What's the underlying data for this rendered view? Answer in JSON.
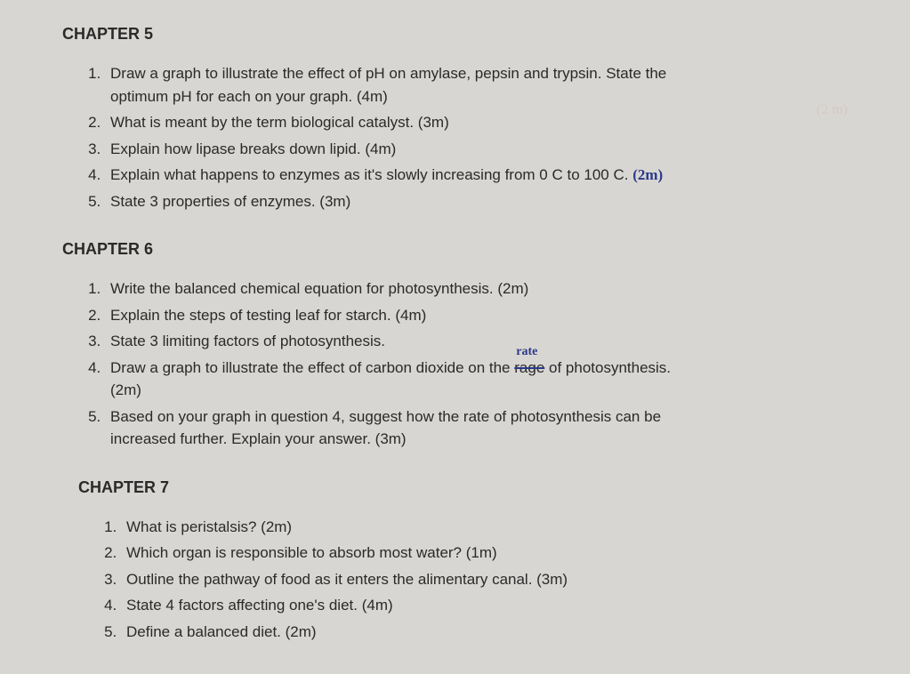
{
  "chapters": [
    {
      "title": "CHAPTER 5",
      "questions": [
        {
          "text_a": "Draw a graph to illustrate the effect of pH on amylase, pepsin and trypsin. State the",
          "text_b": "optimum pH for each on your graph. (4m)"
        },
        {
          "text_a": "What is meant by the term biological catalyst. (3m)"
        },
        {
          "text_a": "Explain how lipase breaks down lipid. (4m)"
        },
        {
          "text_a": "Explain what happens to enzymes as it's slowly increasing from 0 C to 100 C. ",
          "annotation": "(2m)"
        },
        {
          "text_a": "State 3 properties of enzymes. (3m)"
        }
      ]
    },
    {
      "title": "CHAPTER 6",
      "questions": [
        {
          "text_a": "Write the balanced chemical equation for photosynthesis. (2m)"
        },
        {
          "text_a": "Explain the steps of testing leaf for starch. (4m)"
        },
        {
          "text_a": "State 3 limiting factors of photosynthesis."
        },
        {
          "text_a": "Draw a graph to illustrate the effect of carbon dioxide on the ",
          "struck": "rage",
          "correction": "rate",
          "text_b": " of photosynthesis.",
          "text_c": "(2m)"
        },
        {
          "text_a": "Based on your graph in question 4, suggest how the rate of photosynthesis can be",
          "text_b": "increased further. Explain your answer. (3m)"
        }
      ]
    },
    {
      "title": "CHAPTER 7",
      "questions": [
        {
          "text_a": "What is peristalsis? (2m)"
        },
        {
          "text_a": "Which organ is responsible to absorb most water? (1m)"
        },
        {
          "text_a": "Outline the pathway of food as it enters the alimentary canal. (3m)"
        },
        {
          "text_a": "State 4 factors affecting one's diet. (4m)"
        },
        {
          "text_a": "Define a balanced diet. (2m)"
        }
      ]
    }
  ],
  "faint_text": "(2 m)"
}
